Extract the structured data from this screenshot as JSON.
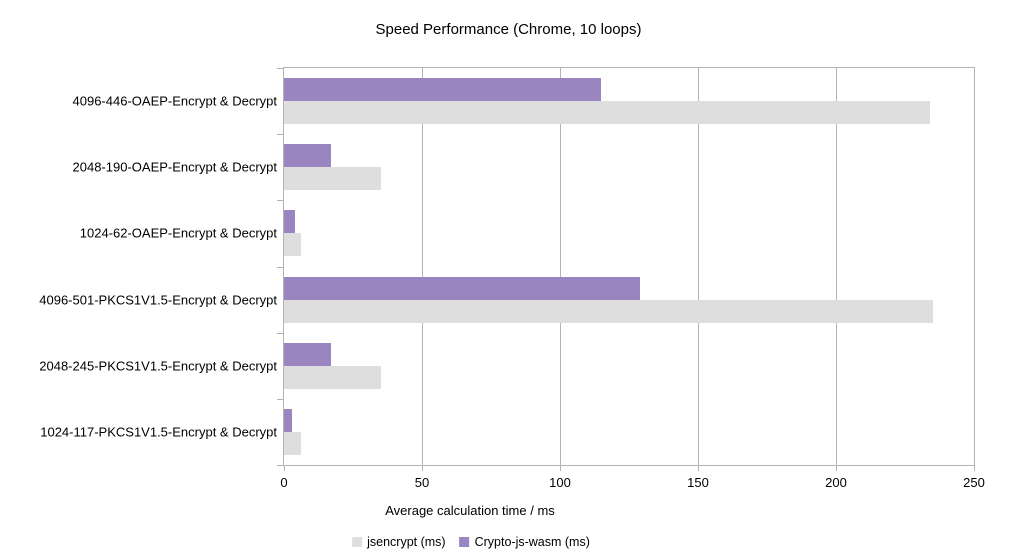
{
  "chart_data": {
    "type": "bar",
    "orientation": "horizontal",
    "title": "Speed Performance (Chrome, 10 loops)",
    "xlabel": "Average calculation time / ms",
    "categories": [
      "4096-446-OAEP-Encrypt & Decrypt",
      "2048-190-OAEP-Encrypt & Decrypt",
      "1024-62-OAEP-Encrypt & Decrypt",
      "4096-501-PKCS1V1.5-Encrypt & Decrypt",
      "2048-245-PKCS1V1.5-Encrypt & Decrypt",
      "1024-117-PKCS1V1.5-Encrypt & Decrypt"
    ],
    "series": [
      {
        "name": "jsencrypt (ms)",
        "color": "#dedede",
        "values": [
          234,
          35,
          6,
          235,
          35,
          6
        ]
      },
      {
        "name": "Crypto-js-wasm (ms)",
        "color": "#9a85c0",
        "values": [
          115,
          17,
          4,
          129,
          17,
          3
        ]
      }
    ],
    "xlim": [
      0,
      250
    ],
    "xticks": [
      0,
      50,
      100,
      150,
      200,
      250
    ],
    "grid": "vertical",
    "legend_position": "bottom",
    "axis_color": "#b3b3b3",
    "text_color": "#000000",
    "background": "#ffffff"
  }
}
